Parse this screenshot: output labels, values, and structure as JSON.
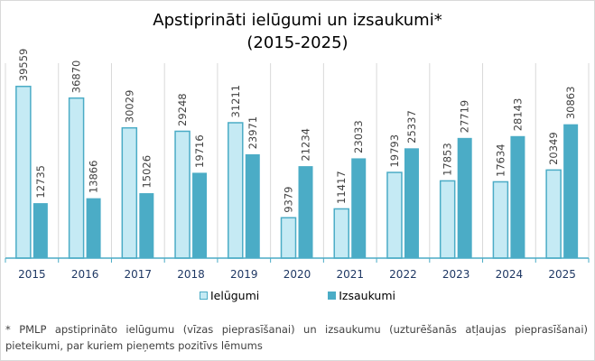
{
  "chart_data": {
    "type": "bar",
    "title": "Apstiprināti ielūgumi un izsaukumi* (2015-2025)",
    "title_lines": [
      "Apstiprināti ielūgumi un izsaukumi*",
      "(2015-2025)"
    ],
    "xlabel": "",
    "ylabel": "",
    "ylim": [
      0,
      45000
    ],
    "grid": "vertical category separators",
    "legend_position": "bottom",
    "categories": [
      "2015",
      "2016",
      "2017",
      "2018",
      "2019",
      "2020",
      "2021",
      "2022",
      "2023",
      "2024",
      "2025"
    ],
    "series": [
      {
        "name": "Ielūgumi",
        "fill": "#C5EAF4",
        "stroke": "#4BACC6",
        "values": [
          39559,
          36870,
          30029,
          29248,
          31211,
          9379,
          11417,
          19793,
          17853,
          17634,
          20349
        ]
      },
      {
        "name": "Izsaukumi",
        "fill": "#4BACC6",
        "stroke": "#4BACC6",
        "values": [
          12735,
          13866,
          15026,
          19716,
          23971,
          21234,
          23033,
          25337,
          27719,
          28143,
          30863
        ]
      }
    ],
    "data_labels": true,
    "data_label_orientation": "vertical"
  },
  "footnote": "* PMLP apstiprināto ielūgumu (vīzas pieprasīšanai) un izsaukumu (uzturēšanās atļaujas pieprasīšanai) pieteikumi, par kuriem pieņemts pozitīvs lēmums",
  "colors": {
    "axis": "#4BACC6",
    "gridline": "#D9D9D9",
    "tick_label": "#1F3864",
    "data_label": "#404040"
  }
}
